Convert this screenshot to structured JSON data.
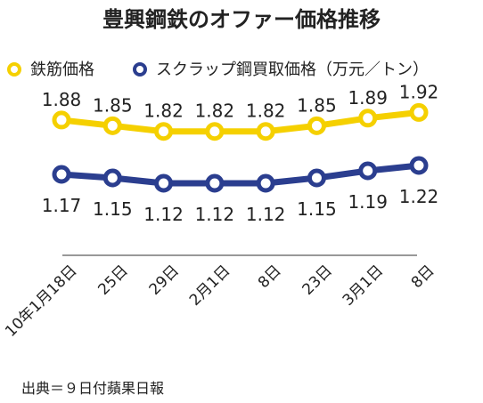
{
  "chart_data": {
    "type": "line",
    "title": "豊興鋼鉄のオファー価格推移",
    "categories": [
      "10年1月18日",
      "25日",
      "29日",
      "2月1日",
      "8日",
      "23日",
      "3月1日",
      "8日"
    ],
    "series": [
      {
        "name": "鉄筋価格",
        "color": "#F5D000",
        "values": [
          1.88,
          1.85,
          1.82,
          1.82,
          1.82,
          1.85,
          1.89,
          1.92
        ],
        "labels": [
          "1.88",
          "1.85",
          "1.82",
          "1.82",
          "1.82",
          "1.85",
          "1.89",
          "1.92"
        ]
      },
      {
        "name": "スクラップ鋼買取価格（万元／トン）",
        "color": "#2B3E8F",
        "values": [
          1.17,
          1.15,
          1.12,
          1.12,
          1.12,
          1.15,
          1.19,
          1.22
        ],
        "labels": [
          "1.17",
          "1.15",
          "1.12",
          "1.12",
          "1.12",
          "1.15",
          "1.19",
          "1.22"
        ]
      }
    ],
    "legend_position": "top",
    "grid": false,
    "source": "出典＝９日付蘋果日報"
  }
}
